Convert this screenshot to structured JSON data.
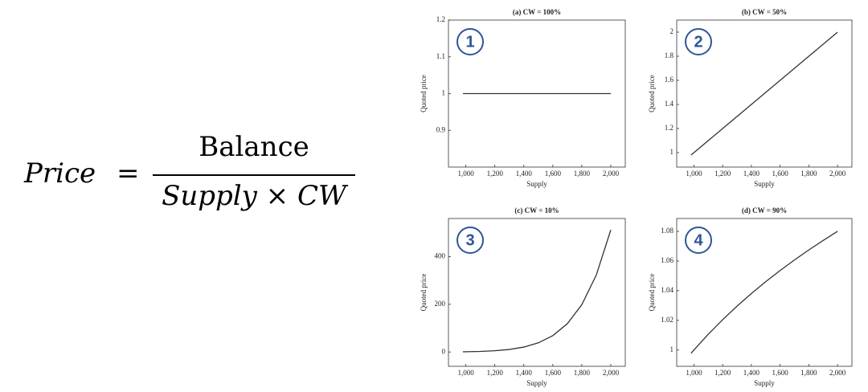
{
  "formula": {
    "lhs": "Price",
    "equals": "=",
    "numerator": "Balance",
    "denominator": "Supply × CW"
  },
  "chart_data": [
    {
      "type": "line",
      "title": "(a) CW = 100%",
      "annotation": "1",
      "x_label": "Supply",
      "y_label": "Quoted price",
      "x": [
        980,
        1000,
        1100,
        1200,
        1300,
        1400,
        1500,
        1600,
        1700,
        1800,
        1900,
        2000
      ],
      "series": [
        {
          "color": "#333333",
          "values": [
            1,
            1,
            1,
            1,
            1,
            1,
            1,
            1,
            1,
            1,
            1,
            1
          ]
        }
      ],
      "xlim": [
        880,
        2100
      ],
      "xticks": [
        {
          "value": 1000,
          "label": "1,000"
        },
        {
          "value": 1200,
          "label": "1,200"
        },
        {
          "value": 1400,
          "label": "1,400"
        },
        {
          "value": 1600,
          "label": "1,600"
        },
        {
          "value": 1800,
          "label": "1,800"
        },
        {
          "value": 2000,
          "label": "2,000"
        }
      ],
      "ylim": [
        0.8,
        1.2
      ],
      "yticks": [
        0.9,
        1,
        1.1,
        1.2
      ]
    },
    {
      "type": "line",
      "title": "(b) CW = 50%",
      "annotation": "2",
      "x_label": "Supply",
      "y_label": "Quoted price",
      "x": [
        980,
        1000,
        1100,
        1200,
        1300,
        1400,
        1500,
        1600,
        1700,
        1800,
        1900,
        2000
      ],
      "series": [
        {
          "color": "#333333",
          "values": [
            0.98,
            1,
            1.1,
            1.2,
            1.3,
            1.4,
            1.5,
            1.6,
            1.7,
            1.8,
            1.9,
            2
          ]
        }
      ],
      "xlim": [
        880,
        2100
      ],
      "xticks": [
        {
          "value": 1000,
          "label": "1,000"
        },
        {
          "value": 1200,
          "label": "1,200"
        },
        {
          "value": 1400,
          "label": "1,400"
        },
        {
          "value": 1600,
          "label": "1,600"
        },
        {
          "value": 1800,
          "label": "1,800"
        },
        {
          "value": 2000,
          "label": "2,000"
        }
      ],
      "ylim": [
        0.88,
        2.1
      ],
      "yticks": [
        1,
        1.2,
        1.4,
        1.6,
        1.8,
        2
      ]
    },
    {
      "type": "line",
      "title": "(c) CW = 10%",
      "annotation": "3",
      "x_label": "Supply",
      "y_label": "Quoted price",
      "x": [
        980,
        1000,
        1100,
        1200,
        1300,
        1400,
        1500,
        1600,
        1700,
        1800,
        1900,
        2000
      ],
      "series": [
        {
          "color": "#333333",
          "values": [
            0.834,
            1,
            2.358,
            5.16,
            10.6,
            20.66,
            38.44,
            68.72,
            118.6,
            198.4,
            322.7,
            512
          ]
        }
      ],
      "xlim": [
        880,
        2100
      ],
      "xticks": [
        {
          "value": 1000,
          "label": "1,000"
        },
        {
          "value": 1200,
          "label": "1,200"
        },
        {
          "value": 1400,
          "label": "1,400"
        },
        {
          "value": 1600,
          "label": "1,600"
        },
        {
          "value": 1800,
          "label": "1,800"
        },
        {
          "value": 2000,
          "label": "2,000"
        }
      ],
      "ylim": [
        -60,
        560
      ],
      "yticks": [
        0,
        200,
        400
      ]
    },
    {
      "type": "line",
      "title": "(d) CW = 90%",
      "annotation": "4",
      "x_label": "Supply",
      "y_label": "Quoted price",
      "x": [
        980,
        1000,
        1100,
        1200,
        1300,
        1400,
        1500,
        1600,
        1700,
        1800,
        1900,
        2000
      ],
      "series": [
        {
          "color": "#333333",
          "values": [
            0.99776,
            1,
            1.01065,
            1.02046,
            1.02958,
            1.03809,
            1.04608,
            1.05361,
            1.06073,
            1.06749,
            1.07392,
            1.08006
          ]
        }
      ],
      "xlim": [
        880,
        2100
      ],
      "xticks": [
        {
          "value": 1000,
          "label": "1,000"
        },
        {
          "value": 1200,
          "label": "1,200"
        },
        {
          "value": 1400,
          "label": "1,400"
        },
        {
          "value": 1600,
          "label": "1,600"
        },
        {
          "value": 1800,
          "label": "1,800"
        },
        {
          "value": 2000,
          "label": "2,000"
        }
      ],
      "ylim": [
        0.989,
        1.0887
      ],
      "yticks": [
        1,
        1.02,
        1.04,
        1.06,
        1.08
      ]
    }
  ]
}
